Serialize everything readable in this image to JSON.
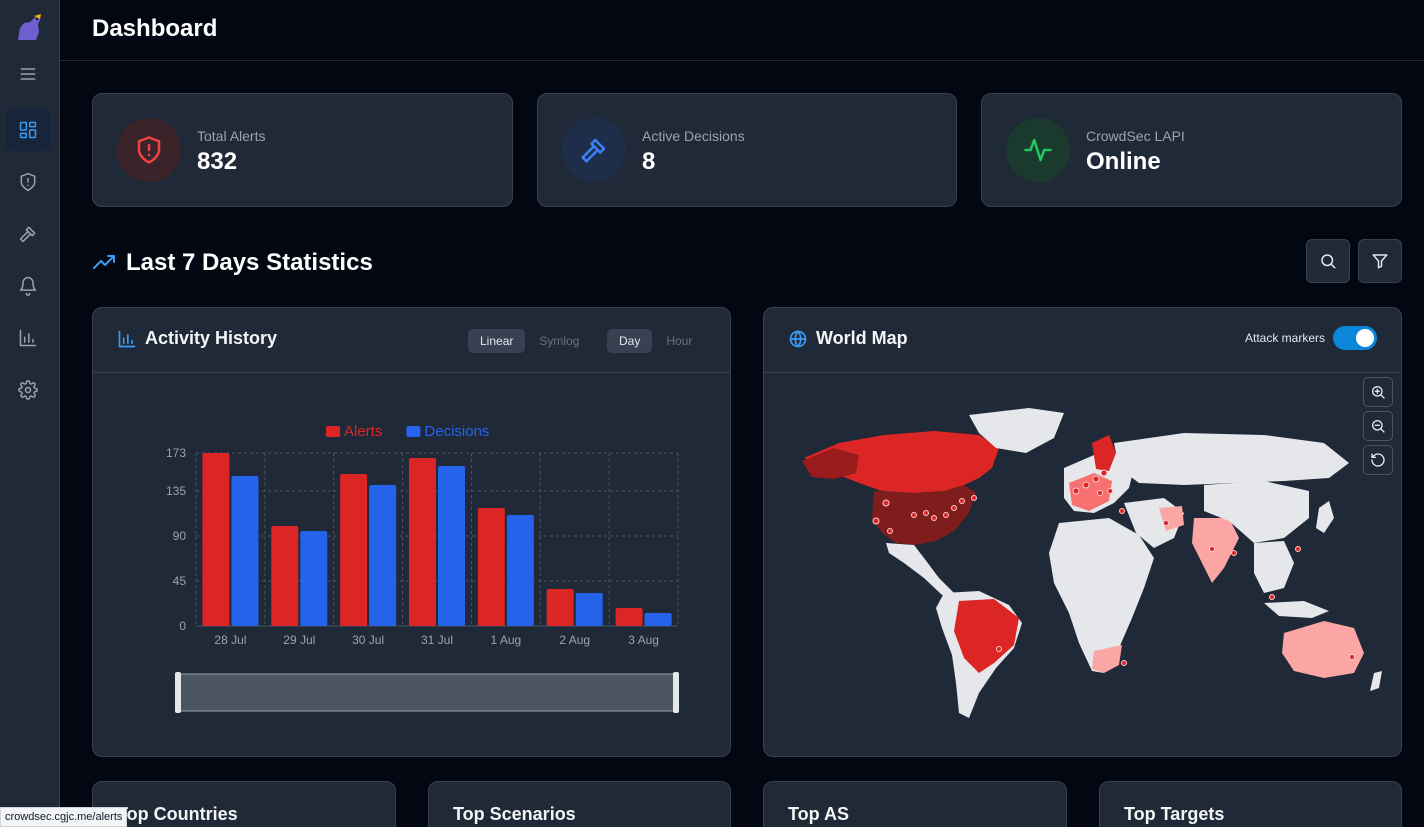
{
  "header": {
    "title": "Dashboard"
  },
  "sidebar": {
    "items": [
      {
        "name": "menu",
        "icon": "menu-icon"
      },
      {
        "name": "dashboard",
        "icon": "dashboard-icon",
        "active": true
      },
      {
        "name": "alerts",
        "icon": "shield-icon"
      },
      {
        "name": "decisions",
        "icon": "gavel-icon"
      },
      {
        "name": "notifications",
        "icon": "bell-icon"
      },
      {
        "name": "statistics",
        "icon": "bar-chart-icon"
      },
      {
        "name": "settings",
        "icon": "gear-icon"
      }
    ]
  },
  "stats": [
    {
      "label": "Total Alerts",
      "value": "832",
      "icon": "shield-alert-icon",
      "color": "#ef4444"
    },
    {
      "label": "Active Decisions",
      "value": "8",
      "icon": "gavel-icon",
      "color": "#3b82f6"
    },
    {
      "label": "CrowdSec LAPI",
      "value": "Online",
      "icon": "activity-icon",
      "color": "#22c55e"
    }
  ],
  "section": {
    "title": "Last 7 Days Statistics"
  },
  "activity": {
    "title": "Activity History",
    "scale_options": [
      "Linear",
      "Symlog"
    ],
    "scale_selected": "Linear",
    "interval_options": [
      "Day",
      "Hour"
    ],
    "interval_selected": "Day"
  },
  "map": {
    "title": "World Map",
    "toggle_label": "Attack markers",
    "toggle_on": true
  },
  "bottom_cards": [
    "Top Countries",
    "Top Scenarios",
    "Top AS",
    "Top Targets"
  ],
  "status_url": "crowdsec.cgjc.me/alerts",
  "chart_data": {
    "type": "bar",
    "categories": [
      "28 Jul",
      "29 Jul",
      "30 Jul",
      "31 Jul",
      "1 Aug",
      "2 Aug",
      "3 Aug"
    ],
    "series": [
      {
        "name": "Alerts",
        "color": "#dc2626",
        "values": [
          173,
          100,
          152,
          168,
          118,
          37,
          18
        ]
      },
      {
        "name": "Decisions",
        "color": "#2563eb",
        "values": [
          150,
          95,
          141,
          160,
          111,
          33,
          13
        ]
      }
    ],
    "yticks": [
      0,
      45,
      90,
      135,
      173
    ],
    "ylim": [
      0,
      173
    ],
    "legend": "top",
    "grid": true
  }
}
